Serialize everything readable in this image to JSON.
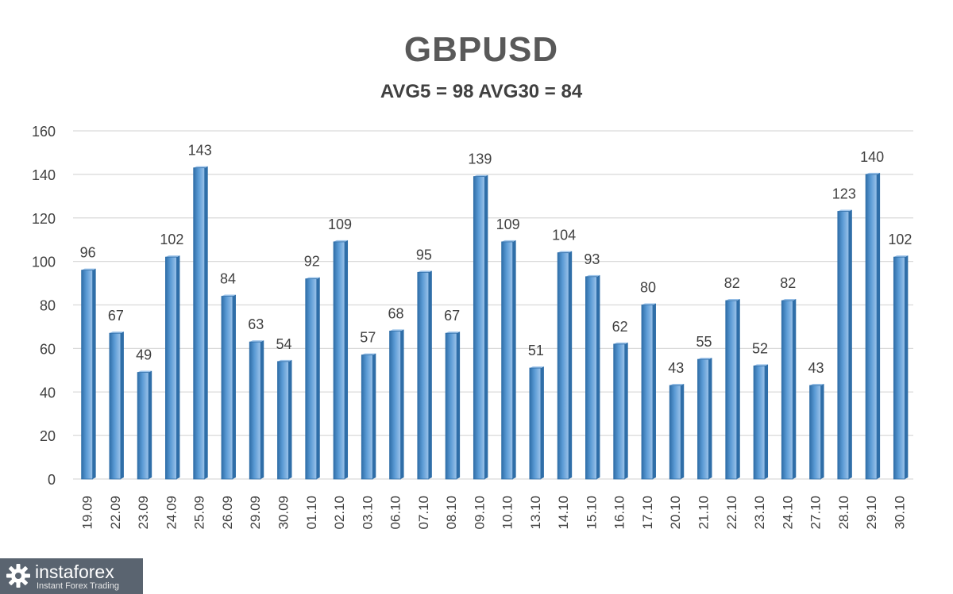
{
  "chart_data": {
    "type": "bar",
    "title": "GBPUSD",
    "subtitle": "AVG5 = 98 AVG30 = 84",
    "categories": [
      "19.09",
      "22.09",
      "23.09",
      "24.09",
      "25.09",
      "26.09",
      "29.09",
      "30.09",
      "01.10",
      "02.10",
      "03.10",
      "06.10",
      "07.10",
      "08.10",
      "09.10",
      "10.10",
      "13.10",
      "14.10",
      "15.10",
      "16.10",
      "17.10",
      "20.10",
      "21.10",
      "22.10",
      "23.10",
      "24.10",
      "27.10",
      "28.10",
      "29.10",
      "30.10"
    ],
    "values": [
      96,
      67,
      49,
      102,
      143,
      84,
      63,
      54,
      92,
      109,
      57,
      68,
      95,
      67,
      139,
      109,
      51,
      104,
      93,
      62,
      80,
      43,
      55,
      82,
      52,
      82,
      43,
      123,
      140,
      102
    ],
    "yticks": [
      0,
      20,
      40,
      60,
      80,
      100,
      120,
      140,
      160
    ],
    "ylim": [
      0,
      160
    ],
    "grid": true,
    "data_labels": true,
    "bar_color": "#5b9bd5",
    "bar_dark_color": "#2f6ea8",
    "bar_light_color": "#9cc3ea"
  },
  "branding": {
    "logo_name": "instaforex",
    "logo_tagline": "Instant Forex Trading",
    "logo_icon": "gear-logo-icon"
  }
}
